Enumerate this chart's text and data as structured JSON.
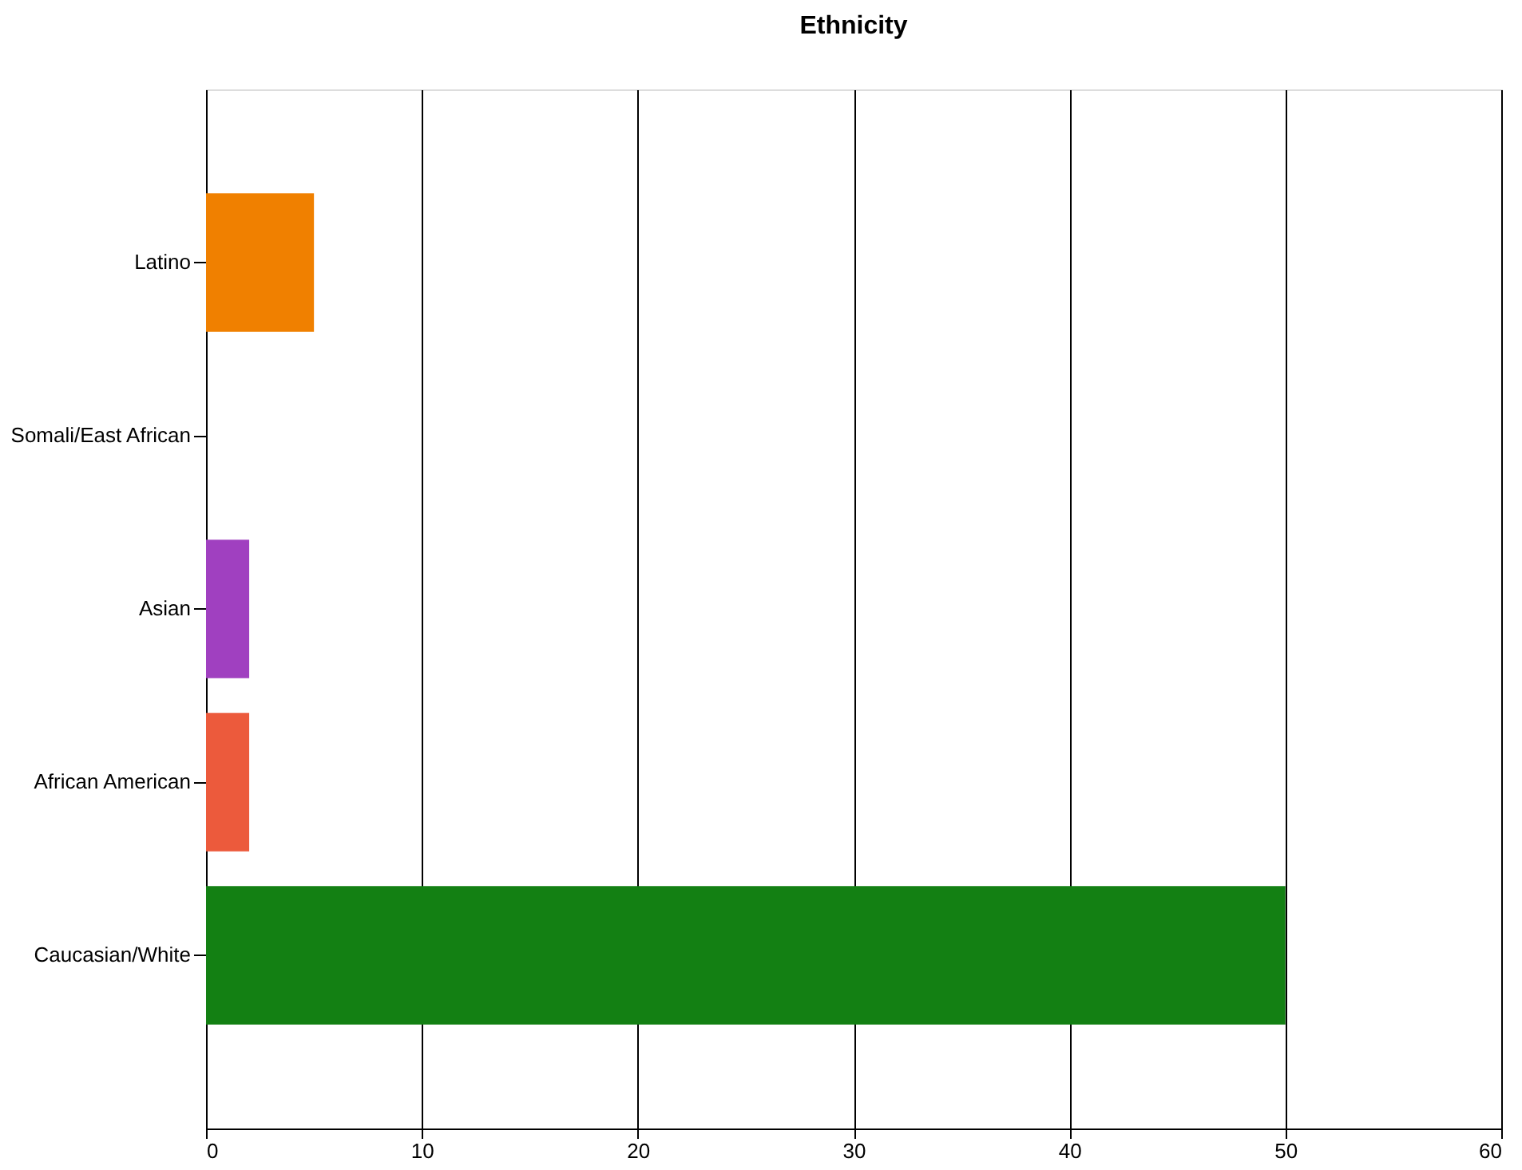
{
  "chart_data": {
    "type": "bar",
    "orientation": "horizontal",
    "title": "Ethnicity",
    "categories": [
      "Latino",
      "Somali/East African",
      "Asian",
      "African American",
      "Caucasian/White"
    ],
    "values": [
      5,
      0,
      2,
      2,
      50
    ],
    "colors": [
      "#f08000",
      null,
      "#a040c0",
      "#ec5a3c",
      "#138013"
    ],
    "xlim": [
      0,
      60
    ],
    "xticks": [
      0,
      10,
      20,
      30,
      40,
      50,
      60
    ],
    "grid": "x"
  }
}
